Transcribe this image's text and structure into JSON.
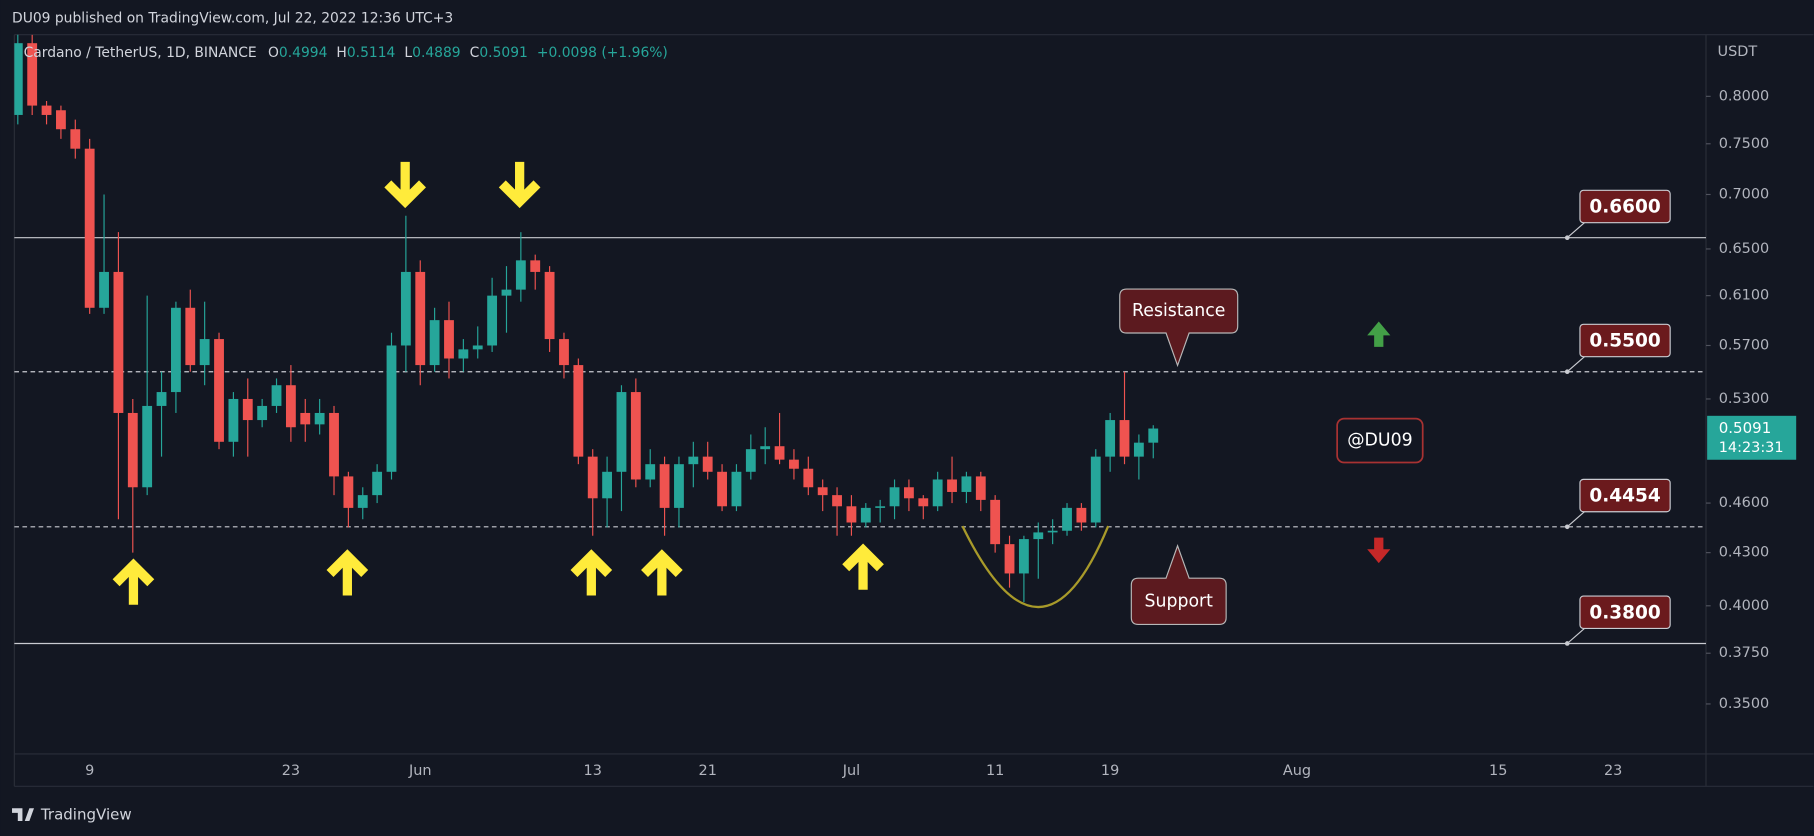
{
  "header": "DU09 published on TradingView.com, Jul 22, 2022 12:36 UTC+3",
  "brand": "TradingView",
  "chart_data": {
    "type": "candlestick",
    "title": "Cardano / TetherUS, 1D, BINANCE",
    "ohlc_letters": [
      "O",
      "H",
      "L",
      "C"
    ],
    "change": "+0.0098 (+1.96%)",
    "currency": "USDT",
    "countdown": "14:23:31",
    "up_color": "#26a69a",
    "down_color": "#ef5350",
    "log": true,
    "ylim": [
      0.327,
      0.87
    ],
    "yticks": [
      {
        "value": 0.8,
        "label": "0.8000"
      },
      {
        "value": 0.75,
        "label": "0.7500"
      },
      {
        "value": 0.7,
        "label": "0.7000"
      },
      {
        "value": 0.65,
        "label": "0.6500"
      },
      {
        "value": 0.61,
        "label": "0.6100"
      },
      {
        "value": 0.57,
        "label": "0.5700"
      },
      {
        "value": 0.53,
        "label": "0.5300"
      },
      {
        "value": 0.46,
        "label": "0.4600"
      },
      {
        "value": 0.43,
        "label": "0.4300"
      },
      {
        "value": 0.4,
        "label": "0.4000"
      },
      {
        "value": 0.375,
        "label": "0.3750"
      },
      {
        "value": 0.35,
        "label": "0.3500"
      }
    ],
    "levels": [
      {
        "value": 0.66,
        "label": "0.6600",
        "style": "solid"
      },
      {
        "value": 0.55,
        "label": "0.5500",
        "style": "dashed"
      },
      {
        "value": 0.4454,
        "label": "0.4454",
        "style": "dashed"
      },
      {
        "value": 0.38,
        "label": "0.3800",
        "style": "solid"
      }
    ],
    "annotations": {
      "resistance": "Resistance",
      "support": "Support",
      "watermark": "@DU09"
    },
    "categories": [
      null,
      null,
      null,
      null,
      null,
      "9",
      null,
      null,
      null,
      null,
      null,
      null,
      null,
      null,
      null,
      null,
      null,
      null,
      null,
      "23",
      null,
      null,
      null,
      null,
      null,
      null,
      null,
      null,
      "Jun",
      null,
      null,
      null,
      null,
      null,
      null,
      null,
      null,
      null,
      null,
      null,
      "13",
      null,
      null,
      null,
      null,
      null,
      null,
      null,
      "21",
      null,
      null,
      null,
      null,
      null,
      null,
      null,
      null,
      null,
      "Jul",
      null,
      null,
      null,
      null,
      null,
      null,
      null,
      null,
      null,
      "11",
      null,
      null,
      null,
      null,
      null,
      null,
      null,
      "19",
      null,
      null,
      null,
      null,
      null,
      null,
      null,
      null,
      null,
      null,
      null,
      null,
      "Aug",
      null,
      null,
      null,
      null,
      null,
      null,
      null,
      null,
      null,
      null,
      null,
      null,
      null,
      "15",
      null,
      null,
      null,
      null,
      null,
      null,
      null,
      "23",
      null,
      null,
      null,
      null,
      null,
      null
    ],
    "open": [
      0.78,
      0.86,
      0.79,
      0.785,
      0.765,
      0.745,
      0.6,
      0.63,
      0.52,
      0.47,
      0.525,
      0.535,
      0.6,
      0.555,
      0.575,
      0.5,
      0.53,
      0.515,
      0.525,
      0.54,
      0.52,
      0.512,
      0.52,
      0.477,
      0.457,
      0.465,
      0.48,
      0.57,
      0.63,
      0.555,
      0.59,
      0.56,
      0.567,
      0.57,
      0.61,
      0.615,
      0.64,
      0.63,
      0.575,
      0.555,
      0.49,
      0.463,
      0.48,
      0.535,
      0.475,
      0.485,
      0.457,
      0.485,
      0.49,
      0.48,
      0.458,
      0.48,
      0.495,
      0.497,
      0.488,
      0.482,
      0.47,
      0.465,
      0.458,
      0.448,
      0.457,
      0.458,
      0.47,
      0.463,
      0.458,
      0.475,
      0.467,
      0.477,
      0.462,
      0.435,
      0.418,
      0.438,
      0.442,
      0.443,
      0.457,
      0.448,
      0.49,
      0.515,
      0.49,
      0.4994,
      null,
      null,
      null,
      null,
      null,
      null,
      null,
      null,
      null,
      null,
      null,
      null,
      null,
      null,
      null,
      null,
      null,
      null,
      null,
      null,
      null,
      null,
      null,
      null,
      null,
      null,
      null,
      null,
      null,
      null,
      null,
      null,
      null,
      null,
      null,
      null,
      null,
      null
    ],
    "high": [
      0.88,
      0.87,
      0.795,
      0.79,
      0.775,
      0.755,
      0.7,
      0.665,
      0.53,
      0.61,
      0.55,
      0.605,
      0.615,
      0.605,
      0.58,
      0.535,
      0.545,
      0.53,
      0.545,
      0.555,
      0.53,
      0.53,
      0.525,
      0.48,
      0.47,
      0.485,
      0.58,
      0.68,
      0.64,
      0.6,
      0.605,
      0.575,
      0.585,
      0.625,
      0.635,
      0.665,
      0.645,
      0.635,
      0.58,
      0.56,
      0.495,
      0.49,
      0.54,
      0.545,
      0.495,
      0.49,
      0.49,
      0.5,
      0.5,
      0.485,
      0.485,
      0.505,
      0.51,
      0.52,
      0.495,
      0.49,
      0.475,
      0.47,
      0.465,
      0.46,
      0.462,
      0.475,
      0.475,
      0.465,
      0.48,
      0.49,
      0.48,
      0.48,
      0.465,
      0.44,
      0.44,
      0.448,
      0.45,
      0.46,
      0.46,
      0.495,
      0.52,
      0.55,
      0.505,
      0.5114,
      null,
      null,
      null,
      null,
      null,
      null,
      null,
      null,
      null,
      null,
      null,
      null,
      null,
      null,
      null,
      null,
      null,
      null,
      null,
      null,
      null,
      null,
      null,
      null,
      null,
      null,
      null,
      null,
      null,
      null,
      null,
      null,
      null,
      null,
      null,
      null,
      null,
      null
    ],
    "low": [
      0.77,
      0.78,
      0.77,
      0.755,
      0.735,
      0.595,
      0.595,
      0.45,
      0.43,
      0.465,
      0.49,
      0.52,
      0.55,
      0.54,
      0.495,
      0.49,
      0.49,
      0.51,
      0.52,
      0.5,
      0.5,
      0.505,
      0.465,
      0.445,
      0.45,
      0.46,
      0.475,
      0.55,
      0.54,
      0.55,
      0.545,
      0.55,
      0.56,
      0.565,
      0.58,
      0.605,
      0.615,
      0.565,
      0.545,
      0.485,
      0.44,
      0.445,
      0.455,
      0.47,
      0.47,
      0.44,
      0.445,
      0.47,
      0.475,
      0.455,
      0.455,
      0.475,
      0.485,
      0.485,
      0.475,
      0.465,
      0.455,
      0.44,
      0.44,
      0.445,
      0.448,
      0.45,
      0.455,
      0.45,
      0.455,
      0.46,
      0.46,
      0.455,
      0.43,
      0.41,
      0.402,
      0.415,
      0.435,
      0.44,
      0.443,
      0.445,
      0.48,
      0.485,
      0.475,
      0.4889,
      null,
      null,
      null,
      null,
      null,
      null,
      null,
      null,
      null,
      null,
      null,
      null,
      null,
      null,
      null,
      null,
      null,
      null,
      null,
      null,
      null,
      null,
      null,
      null,
      null,
      null,
      null,
      null,
      null,
      null,
      null,
      null,
      null,
      null,
      null,
      null,
      null,
      null
    ],
    "close": [
      0.86,
      0.79,
      0.78,
      0.765,
      0.745,
      0.6,
      0.63,
      0.52,
      0.47,
      0.525,
      0.535,
      0.6,
      0.555,
      0.575,
      0.5,
      0.53,
      0.515,
      0.525,
      0.54,
      0.51,
      0.512,
      0.52,
      0.477,
      0.457,
      0.465,
      0.48,
      0.57,
      0.63,
      0.555,
      0.59,
      0.56,
      0.567,
      0.57,
      0.61,
      0.615,
      0.64,
      0.63,
      0.575,
      0.555,
      0.49,
      0.463,
      0.48,
      0.535,
      0.475,
      0.485,
      0.457,
      0.485,
      0.49,
      0.48,
      0.458,
      0.48,
      0.495,
      0.497,
      0.488,
      0.482,
      0.47,
      0.465,
      0.458,
      0.448,
      0.457,
      0.458,
      0.47,
      0.463,
      0.458,
      0.475,
      0.467,
      0.477,
      0.462,
      0.435,
      0.418,
      0.438,
      0.442,
      0.443,
      0.457,
      0.448,
      0.49,
      0.515,
      0.49,
      0.4994,
      0.5091,
      null,
      null,
      null,
      null,
      null,
      null,
      null,
      null,
      null,
      null,
      null,
      null,
      null,
      null,
      null,
      null,
      null,
      null,
      null,
      null,
      null,
      null,
      null,
      null,
      null,
      null,
      null,
      null,
      null,
      null,
      null,
      null,
      null,
      null,
      null,
      null,
      null,
      null
    ]
  }
}
